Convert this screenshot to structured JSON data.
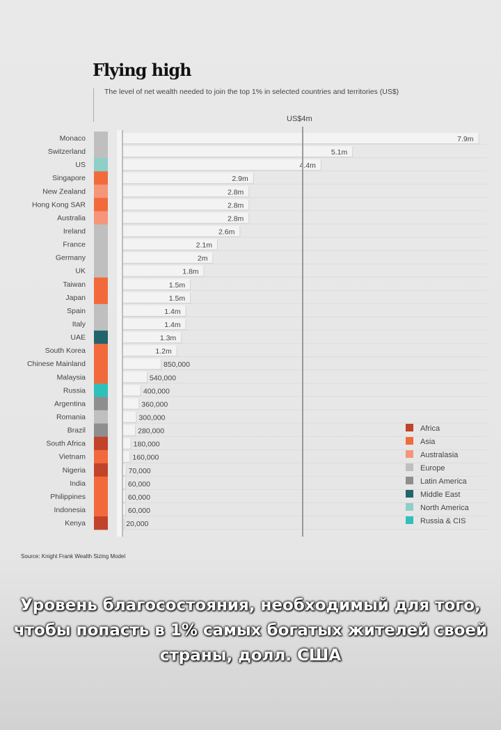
{
  "chart_data": {
    "type": "bar",
    "orientation": "horizontal",
    "title": "Flying high",
    "subtitle": "The level of net wealth needed to join the top 1% in selected countries and territories (US$)",
    "reference_line": {
      "value": 4000000,
      "label": "US$4m"
    },
    "xlim": [
      0,
      8000000
    ],
    "categories": [
      "Monaco",
      "Switzerland",
      "US",
      "Singapore",
      "New Zealand",
      "Hong Kong SAR",
      "Australia",
      "Ireland",
      "France",
      "Germany",
      "UK",
      "Taiwan",
      "Japan",
      "Spain",
      "Italy",
      "UAE",
      "South Korea",
      "Chinese Mainland",
      "Malaysia",
      "Russia",
      "Argentina",
      "Romania",
      "Brazil",
      "South Africa",
      "Vietnam",
      "Nigeria",
      "India",
      "Philippines",
      "Indonesia",
      "Kenya"
    ],
    "values": [
      7900000,
      5100000,
      4400000,
      2900000,
      2800000,
      2800000,
      2800000,
      2600000,
      2100000,
      2000000,
      1800000,
      1500000,
      1500000,
      1400000,
      1400000,
      1300000,
      1200000,
      850000,
      540000,
      400000,
      360000,
      300000,
      280000,
      180000,
      160000,
      70000,
      60000,
      60000,
      60000,
      20000
    ],
    "value_labels": [
      "7.9m",
      "5.1m",
      "4.4m",
      "2.9m",
      "2.8m",
      "2.8m",
      "2.8m",
      "2.6m",
      "2.1m",
      "2m",
      "1.8m",
      "1.5m",
      "1.5m",
      "1.4m",
      "1.4m",
      "1.3m",
      "1.2m",
      "850,000",
      "540,000",
      "400,000",
      "360,000",
      "300,000",
      "280,000",
      "180,000",
      "160,000",
      "70,000",
      "60,000",
      "60,000",
      "60,000",
      "20,000"
    ],
    "regions": [
      "Europe",
      "Europe",
      "North America",
      "Asia",
      "Australasia",
      "Asia",
      "Australasia",
      "Europe",
      "Europe",
      "Europe",
      "Europe",
      "Asia",
      "Asia",
      "Europe",
      "Europe",
      "Middle East",
      "Asia",
      "Asia",
      "Asia",
      "Russia & CIS",
      "Latin America",
      "Europe",
      "Latin America",
      "Africa",
      "Asia",
      "Africa",
      "Asia",
      "Asia",
      "Asia",
      "Africa"
    ],
    "legend": {
      "placement": "bottom-right",
      "items": [
        {
          "label": "Africa",
          "color": "#c0432a"
        },
        {
          "label": "Asia",
          "color": "#f26a3c"
        },
        {
          "label": "Australasia",
          "color": "#f5957a"
        },
        {
          "label": "Europe",
          "color": "#bfbfbf"
        },
        {
          "label": "Latin America",
          "color": "#8e8e8e"
        },
        {
          "label": "Middle East",
          "color": "#23646c"
        },
        {
          "label": "North America",
          "color": "#8ecfc8"
        },
        {
          "label": "Russia & CIS",
          "color": "#2ec0bb"
        }
      ]
    },
    "source": "Source: Knight Frank Wealth Sizing Model"
  },
  "caption": "Уровень благосостояния, необходимый для того, чтобы попасть в 1% самых богатых жителей своей страны, долл. США"
}
